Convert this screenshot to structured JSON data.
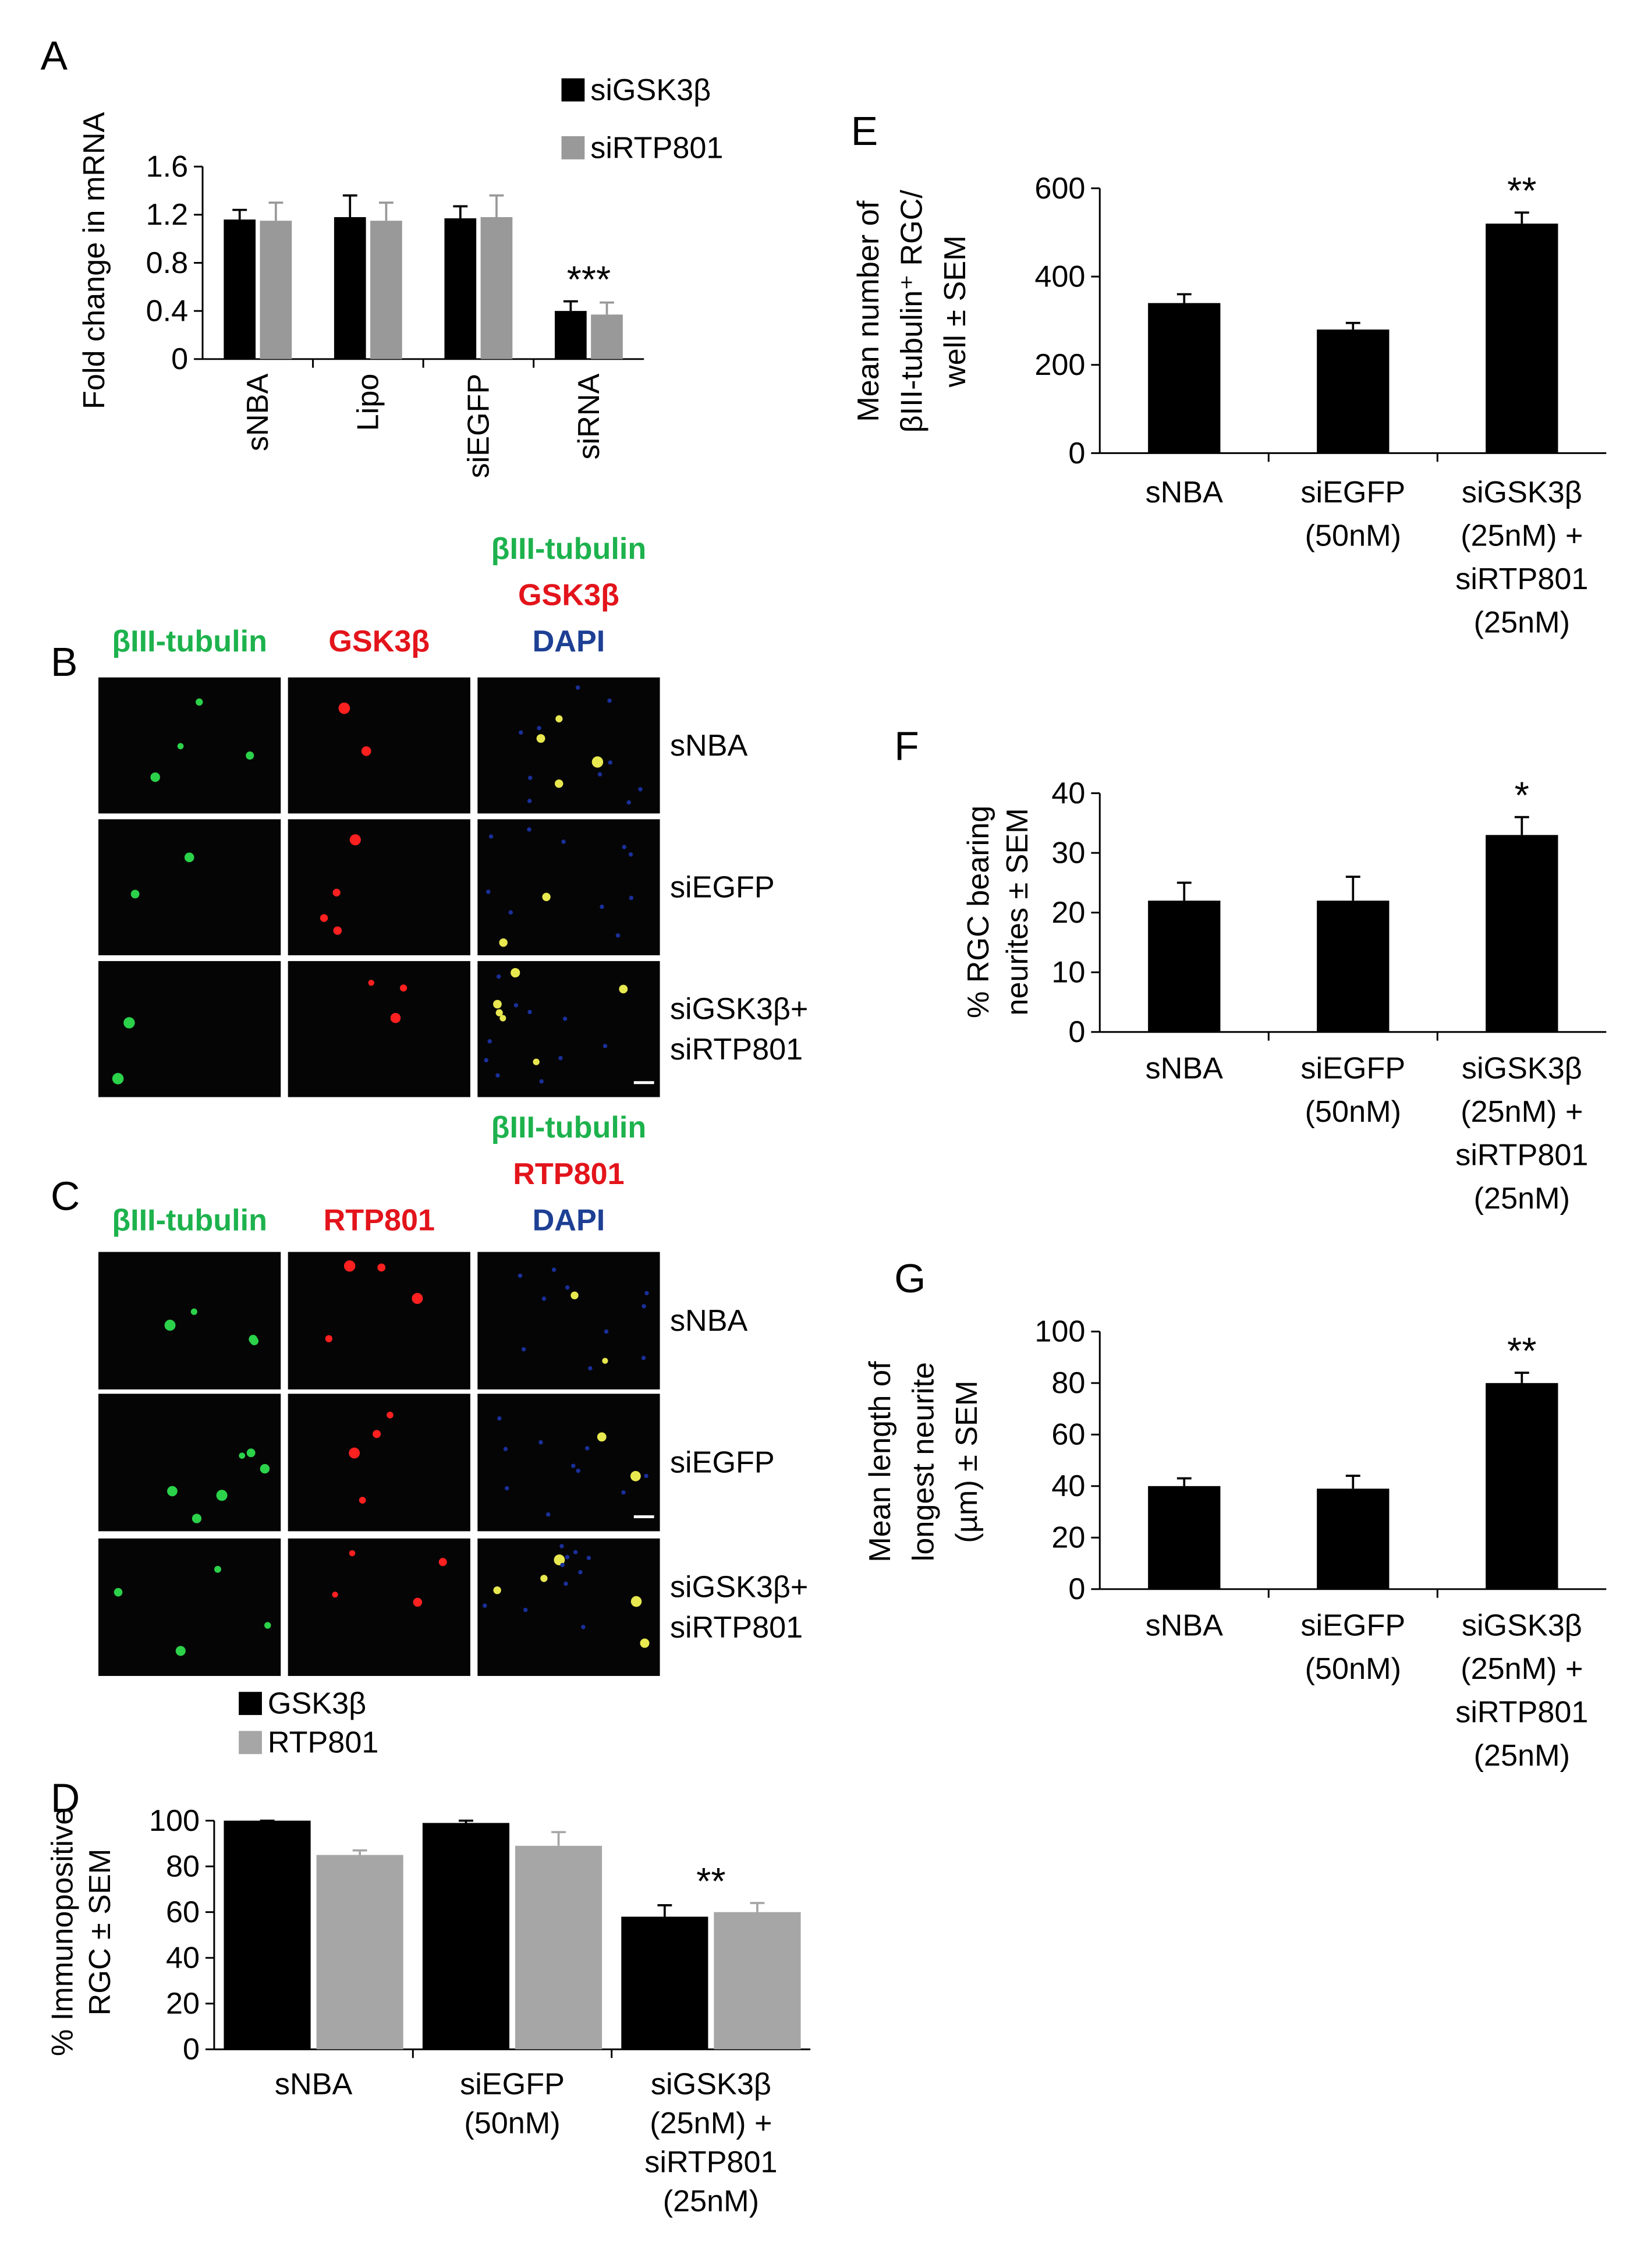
{
  "chart_data": [
    {
      "type": "bar",
      "panel": "A",
      "ylabel": [
        "Fold change in mRNA"
      ],
      "categories": [
        [
          "sNBA"
        ],
        [
          "Lipo"
        ],
        [
          "siEGFP"
        ],
        [
          "siRNA"
        ]
      ],
      "series": [
        {
          "name": "siGSK3β",
          "color": "#000000",
          "values": [
            1.16,
            1.18,
            1.17,
            0.4
          ],
          "errors": [
            0.08,
            0.18,
            0.1,
            0.08
          ]
        },
        {
          "name": "siRTP801",
          "color": "#999999",
          "values": [
            1.15,
            1.15,
            1.18,
            0.37
          ],
          "errors": [
            0.15,
            0.15,
            0.18,
            0.1
          ]
        }
      ],
      "ylim": [
        0,
        1.6
      ],
      "yticks": [
        0,
        0.4,
        0.8,
        1.2,
        1.6
      ],
      "annotation": "***"
    },
    {
      "type": "bar",
      "panel": "D",
      "ylabel": [
        "% Immunopositive",
        "RGC ± SEM"
      ],
      "categories": [
        [
          "sNBA"
        ],
        [
          "siEGFP",
          "(50nM)"
        ],
        [
          "siGSK3β",
          "(25nM) +",
          "siRTP801",
          "(25nM)"
        ]
      ],
      "series": [
        {
          "name": "GSK3β",
          "color": "#000000",
          "values": [
            100,
            99,
            58
          ],
          "errors": [
            0,
            1,
            5
          ]
        },
        {
          "name": "RTP801",
          "color": "#a6a6a6",
          "values": [
            85,
            89,
            60
          ],
          "errors": [
            2,
            6,
            4
          ]
        }
      ],
      "ylim": [
        0,
        100
      ],
      "yticks": [
        0,
        20,
        40,
        60,
        80,
        100
      ],
      "annotation": "**"
    },
    {
      "type": "bar",
      "panel": "E",
      "ylabel": [
        "Mean number of",
        "βIII-tubulin⁺ RGC/",
        "well ± SEM"
      ],
      "categories": [
        [
          "sNBA"
        ],
        [
          "siEGFP",
          "(50nM)"
        ],
        [
          "siGSK3β",
          "(25nM) +",
          "siRTP801",
          "(25nM)"
        ]
      ],
      "values": [
        340,
        280,
        520
      ],
      "errors": [
        20,
        15,
        25
      ],
      "color": "#000000",
      "ylim": [
        0,
        600
      ],
      "yticks": [
        0,
        200,
        400,
        600
      ],
      "annotation": "**"
    },
    {
      "type": "bar",
      "panel": "F",
      "ylabel": [
        "% RGC bearing",
        "neurites ± SEM"
      ],
      "categories": [
        [
          "sNBA"
        ],
        [
          "siEGFP",
          "(50nM)"
        ],
        [
          "siGSK3β",
          "(25nM) +",
          "siRTP801",
          "(25nM)"
        ]
      ],
      "values": [
        22,
        22,
        33
      ],
      "errors": [
        3,
        4,
        3
      ],
      "color": "#000000",
      "ylim": [
        0,
        40
      ],
      "yticks": [
        0,
        10,
        20,
        30,
        40
      ],
      "annotation": "*"
    },
    {
      "type": "bar",
      "panel": "G",
      "ylabel": [
        "Mean length of",
        "longest neurite",
        "(µm) ± SEM"
      ],
      "categories": [
        [
          "sNBA"
        ],
        [
          "siEGFP",
          "(50nM)"
        ],
        [
          "siGSK3β",
          "(25nM) +",
          "siRTP801",
          "(25nM)"
        ]
      ],
      "values": [
        40,
        39,
        80
      ],
      "errors": [
        3,
        5,
        4
      ],
      "color": "#000000",
      "ylim": [
        0,
        100
      ],
      "yticks": [
        0,
        20,
        40,
        60,
        80,
        100
      ],
      "annotation": "**"
    }
  ],
  "image_panels": [
    {
      "panel": "B",
      "columns": [
        [
          "βIII-tubulin"
        ],
        [
          "GSK3β"
        ],
        [
          "βIII-tubulin",
          "GSK3β",
          "DAPI"
        ]
      ],
      "rows": [
        [
          "sNBA"
        ],
        [
          "siEGFP"
        ],
        [
          "siGSK3β+",
          "siRTP801"
        ]
      ]
    },
    {
      "panel": "C",
      "columns": [
        [
          "βIII-tubulin"
        ],
        [
          "RTP801"
        ],
        [
          "βIII-tubulin",
          "RTP801",
          "DAPI"
        ]
      ],
      "rows": [
        [
          "sNBA"
        ],
        [
          "siEGFP"
        ],
        [
          "siGSK3β+",
          "siRTP801"
        ]
      ]
    }
  ],
  "label_colors": [
    "#1db24d",
    "#e3141b",
    "#1d3f94"
  ]
}
